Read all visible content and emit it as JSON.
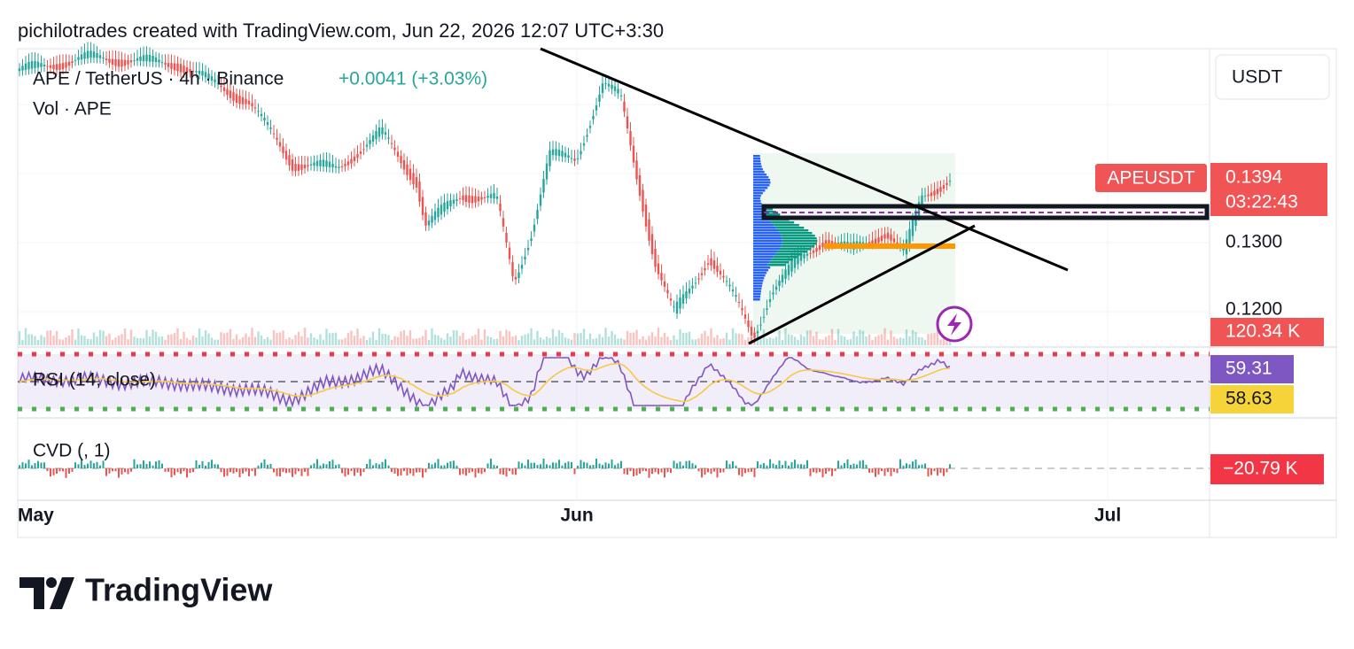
{
  "header": "pichilotrades created with TradingView.com, Jun 22, 2026 12:07 UTC+3:30",
  "legend": {
    "symbol": "APE / TetherUS · 4h · Binance",
    "change": "+0.0041 (+3.03%)",
    "volume": "Vol · APE"
  },
  "price_axis": {
    "currency": "USDT",
    "ticks": [
      "0.1300",
      "0.1200"
    ]
  },
  "badges": {
    "symbol": "APEUSDT",
    "price": "0.1394",
    "countdown": "03:22:43",
    "volume": "120.34 K",
    "rsi": "59.31",
    "rsi_ma": "58.63",
    "cvd": "−20.79 K"
  },
  "indicators": {
    "rsi": "RSI (14, close)",
    "cvd": "CVD (, 1)"
  },
  "time_axis": [
    "May",
    "Jun",
    "Jul"
  ],
  "logo": "TradingView"
}
